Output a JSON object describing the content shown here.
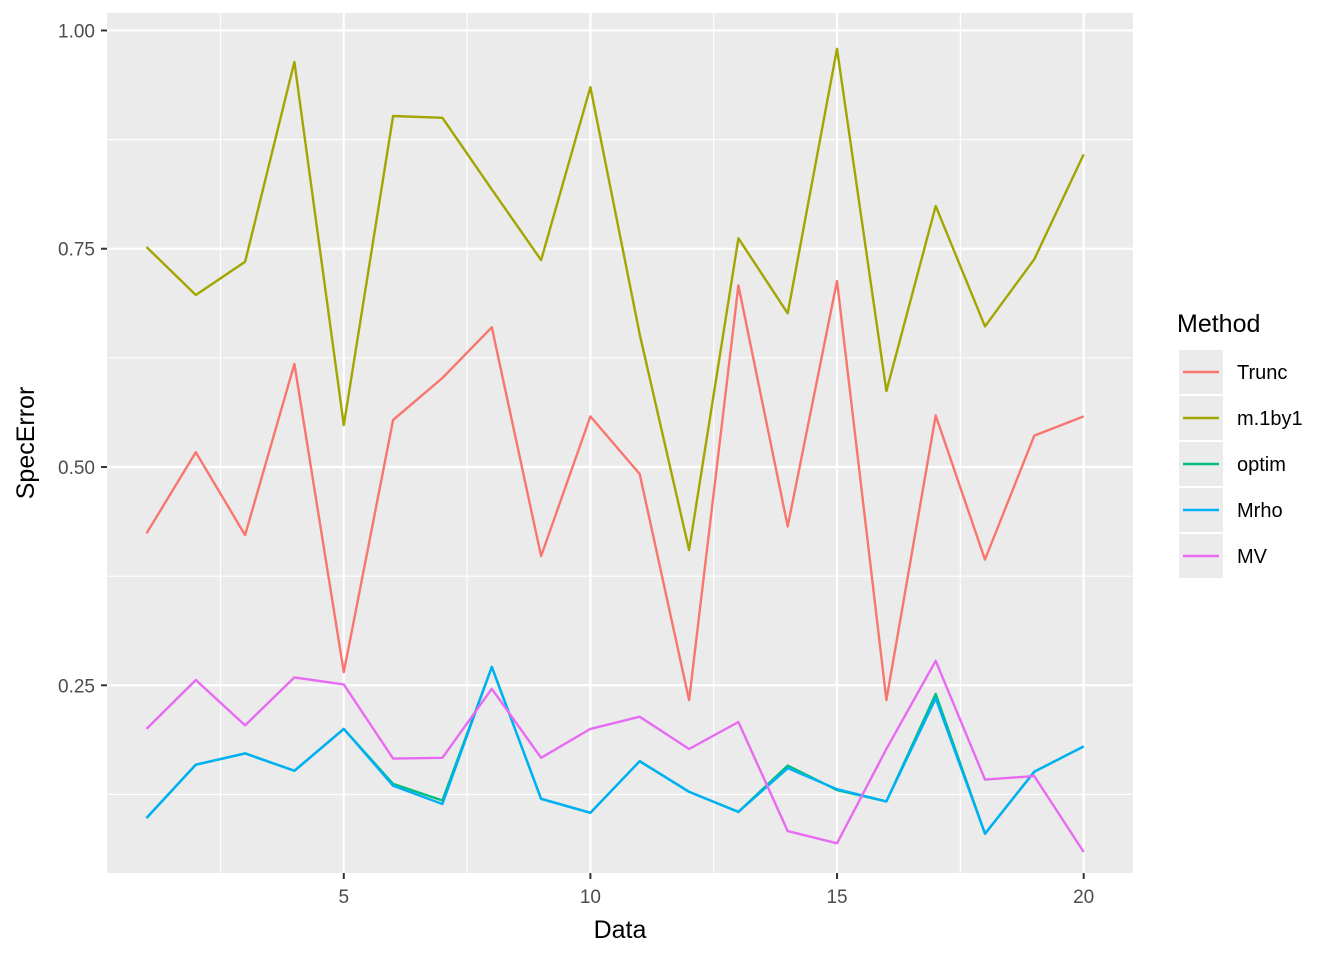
{
  "chart_data": {
    "type": "line",
    "xlabel": "Data",
    "ylabel": "SpecError",
    "xlim": [
      0.2,
      21.0
    ],
    "ylim": [
      0.035,
      1.02
    ],
    "xticks": [
      5,
      10,
      15,
      20
    ],
    "xtick_labels": [
      "5",
      "10",
      "15",
      "20"
    ],
    "yticks": [
      0.25,
      0.5,
      0.75,
      1.0
    ],
    "ytick_labels": [
      "0.25",
      "0.50",
      "0.75",
      "1.00"
    ],
    "grid": true,
    "legend": {
      "title": "Method",
      "position": "right"
    },
    "x": [
      1,
      2,
      3,
      4,
      5,
      6,
      7,
      8,
      9,
      10,
      11,
      12,
      13,
      14,
      15,
      16,
      17,
      18,
      19,
      20
    ],
    "series": [
      {
        "name": "Trunc",
        "color": "#F8766D",
        "values": [
          0.424,
          0.517,
          0.422,
          0.618,
          0.265,
          0.554,
          0.602,
          0.66,
          0.398,
          0.558,
          0.492,
          0.233,
          0.708,
          0.432,
          0.713,
          0.233,
          0.559,
          0.394,
          0.536,
          0.558
        ]
      },
      {
        "name": "m.1by1",
        "color": "#A3A500",
        "values": [
          0.752,
          0.697,
          0.735,
          0.964,
          0.548,
          0.902,
          0.9,
          0.818,
          0.737,
          0.935,
          0.652,
          0.405,
          0.762,
          0.676,
          0.979,
          0.587,
          0.799,
          0.661,
          0.738,
          0.858
        ]
      },
      {
        "name": "optim",
        "color": "#00BF7D",
        "values": [
          0.098,
          0.159,
          0.172,
          0.152,
          0.2,
          0.137,
          0.118,
          0.271,
          0.12,
          0.104,
          0.163,
          0.128,
          0.105,
          0.158,
          0.13,
          0.117,
          0.24,
          0.08,
          0.151,
          0.18
        ]
      },
      {
        "name": "Mrho",
        "color": "#00B0F6",
        "values": [
          0.098,
          0.159,
          0.172,
          0.152,
          0.2,
          0.135,
          0.114,
          0.271,
          0.12,
          0.104,
          0.163,
          0.128,
          0.105,
          0.155,
          0.131,
          0.117,
          0.235,
          0.08,
          0.151,
          0.18
        ]
      },
      {
        "name": "MV",
        "color": "#E76BF3",
        "values": [
          0.2,
          0.256,
          0.204,
          0.259,
          0.251,
          0.166,
          0.167,
          0.246,
          0.167,
          0.2,
          0.214,
          0.177,
          0.208,
          0.083,
          0.069,
          0.177,
          0.278,
          0.142,
          0.146,
          0.059
        ]
      }
    ]
  }
}
